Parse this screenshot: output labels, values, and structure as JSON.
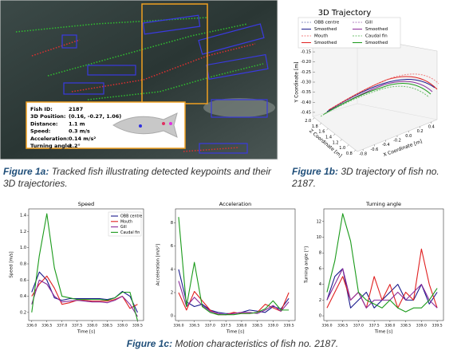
{
  "figure_1a": {
    "info": [
      {
        "label": "Fish ID:",
        "value": "2187"
      },
      {
        "label": "3D Position:",
        "value": "(0.16, -0.27, 1.06)"
      },
      {
        "label": "Distance:",
        "value": "1.1 m"
      },
      {
        "label": "Speed:",
        "value": "0.3 m/s"
      },
      {
        "label": "Acceleration:",
        "value": "0.14 m/s²"
      },
      {
        "label": "Turning angle:",
        "value": "1.2°"
      }
    ],
    "caption_label": "Figure 1a:",
    "caption": "Tracked fish illustrating detected keypoints and their 3D trajectories."
  },
  "figure_1b": {
    "title": "3D Trajectory",
    "legend": [
      {
        "name": "OBB centre",
        "color": "#8a8fc0",
        "dash": true
      },
      {
        "name": "Smoothed",
        "color": "#1a1a8c",
        "dash": false
      },
      {
        "name": "Mouth",
        "color": "#f08080",
        "dash": true
      },
      {
        "name": "Smoothed",
        "color": "#e02020",
        "dash": false
      },
      {
        "name": "Gill",
        "color": "#b080c0",
        "dash": true
      },
      {
        "name": "Smoothed",
        "color": "#8a2a9a",
        "dash": false
      },
      {
        "name": "Caudal fin",
        "color": "#70c070",
        "dash": true
      },
      {
        "name": "Smoothed",
        "color": "#1a9a1a",
        "dash": false
      }
    ],
    "xlabel": "X Coordinate [m]",
    "ylabel": "Y Coordinate [m]",
    "zlabel": "Z Coordinate [m]",
    "xlim": [
      -0.9,
      0.5
    ],
    "xticks": [
      -0.8,
      -0.6,
      -0.4,
      -0.2,
      {
        "value": 0,
        "label": "0.0"
      },
      0.2,
      0.4
    ],
    "ylim": [
      -0.47,
      -0.13
    ],
    "yticks": [
      -0.15,
      {
        "value": -0.2,
        "label": "-0.20"
      },
      -0.25,
      {
        "value": -0.3,
        "label": "-0.30"
      },
      -0.35,
      {
        "value": -0.4,
        "label": "-0.40"
      },
      -0.45
    ],
    "zlim": [
      2.05,
      0.75
    ],
    "zticks": [
      {
        "value": 2,
        "label": "2.0"
      },
      1.8,
      1.6,
      1.4,
      1.2,
      {
        "value": 1,
        "label": "1.0"
      },
      0.8
    ],
    "caption_label": "Figure 1b:",
    "caption": "3D trajectory of fish no. 2187."
  },
  "chart_data": [
    {
      "type": "line",
      "title": "Speed",
      "xlabel": "Time [s]",
      "ylabel": "Speed [m/s]",
      "x": [
        336.0,
        336.25,
        336.5,
        336.75,
        337.0,
        337.25,
        337.5,
        337.75,
        338.0,
        338.25,
        338.5,
        338.75,
        339.0,
        339.25,
        339.5
      ],
      "xlim": [
        335.9,
        339.7
      ],
      "xticks": [
        {
          "value": 336,
          "label": "336.0"
        },
        336.5,
        {
          "value": 337,
          "label": "337.0"
        },
        337.5,
        {
          "value": 338,
          "label": "338.0"
        },
        338.5,
        {
          "value": 339,
          "label": "339.0"
        },
        339.5
      ],
      "ylim": [
        0.1,
        1.48
      ],
      "yticks": [
        0.2,
        0.4,
        0.6,
        0.8,
        {
          "value": 1,
          "label": "1.0"
        },
        1.2,
        1.4
      ],
      "legend": "upper right",
      "series": [
        {
          "name": "OBB centre",
          "color": "#1a1a8c",
          "values": [
            0.45,
            0.7,
            0.6,
            0.38,
            0.35,
            0.37,
            0.37,
            0.37,
            0.37,
            0.37,
            0.36,
            0.38,
            0.46,
            0.4,
            0.2
          ]
        },
        {
          "name": "Mouth",
          "color": "#e02020",
          "values": [
            0.4,
            0.55,
            0.65,
            0.5,
            0.3,
            0.32,
            0.35,
            0.35,
            0.34,
            0.34,
            0.34,
            0.36,
            0.4,
            0.25,
            0.3
          ]
        },
        {
          "name": "Gill",
          "color": "#8a2a9a",
          "values": [
            0.3,
            0.6,
            0.55,
            0.4,
            0.33,
            0.34,
            0.35,
            0.34,
            0.33,
            0.33,
            0.32,
            0.35,
            0.4,
            0.3,
            0.15
          ]
        },
        {
          "name": "Caudal fin",
          "color": "#1a9a1a",
          "values": [
            0.2,
            0.9,
            1.42,
            0.75,
            0.4,
            0.38,
            0.36,
            0.36,
            0.36,
            0.36,
            0.35,
            0.38,
            0.45,
            0.45,
            0.1
          ]
        }
      ]
    },
    {
      "type": "line",
      "title": "Acceleration",
      "xlabel": "Time [s]",
      "ylabel": "Acceleration [m/s²]",
      "x": [
        336.0,
        336.25,
        336.5,
        336.75,
        337.0,
        337.25,
        337.5,
        337.75,
        338.0,
        338.25,
        338.5,
        338.75,
        339.0,
        339.25,
        339.5
      ],
      "xlim": [
        335.9,
        339.7
      ],
      "xticks": [
        {
          "value": 336,
          "label": "336.0"
        },
        336.5,
        {
          "value": 337,
          "label": "337.0"
        },
        337.5,
        {
          "value": 338,
          "label": "338.0"
        },
        338.5,
        {
          "value": 339,
          "label": "339.0"
        },
        339.5
      ],
      "ylim": [
        -0.4,
        9.2
      ],
      "yticks": [
        0,
        2,
        4,
        6,
        8
      ],
      "series": [
        {
          "color": "#1a1a8c",
          "values": [
            4.0,
            1.2,
            0.8,
            1.0,
            0.5,
            0.3,
            0.2,
            0.2,
            0.3,
            0.5,
            0.4,
            0.3,
            0.8,
            0.6,
            1.5
          ]
        },
        {
          "color": "#e02020",
          "values": [
            2.0,
            0.5,
            2.1,
            1.3,
            0.5,
            0.1,
            0.1,
            0.3,
            0.2,
            0.2,
            0.3,
            1.0,
            0.7,
            0.4,
            2.0
          ]
        },
        {
          "color": "#8a2a9a",
          "values": [
            3.0,
            0.8,
            1.6,
            0.9,
            0.4,
            0.2,
            0.1,
            0.2,
            0.3,
            0.3,
            0.2,
            0.5,
            0.9,
            0.4,
            1.2
          ]
        },
        {
          "color": "#1a9a1a",
          "values": [
            8.5,
            0.8,
            4.6,
            0.8,
            0.3,
            0.1,
            0.1,
            0.1,
            0.2,
            0.2,
            0.3,
            0.6,
            1.3,
            0.5,
            0.5
          ]
        }
      ]
    },
    {
      "type": "line",
      "title": "Turning angle",
      "xlabel": "Time [s]",
      "ylabel": "Turning angle [°]",
      "x": [
        336.0,
        336.25,
        336.5,
        336.75,
        337.0,
        337.25,
        337.5,
        337.75,
        338.0,
        338.25,
        338.5,
        338.75,
        339.0,
        339.25,
        339.5
      ],
      "xlim": [
        335.9,
        339.7
      ],
      "xticks": [
        {
          "value": 336,
          "label": "336.0"
        },
        336.5,
        {
          "value": 337,
          "label": "337.0"
        },
        337.5,
        {
          "value": 338,
          "label": "338.0"
        },
        338.5,
        {
          "value": 339,
          "label": "339.0"
        },
        339.5
      ],
      "ylim": [
        -0.6,
        13.6
      ],
      "yticks": [
        0,
        2,
        4,
        6,
        8,
        10,
        12
      ],
      "series": [
        {
          "color": "#1a1a8c",
          "values": [
            2,
            5,
            6,
            1,
            2,
            3,
            1,
            2,
            3,
            4,
            2,
            2,
            4,
            1.5,
            3
          ]
        },
        {
          "color": "#e02020",
          "values": [
            1,
            3,
            5,
            2,
            3,
            1,
            5,
            2,
            4,
            1,
            3,
            2,
            8.5,
            4,
            1
          ]
        },
        {
          "color": "#8a2a9a",
          "values": [
            2,
            4,
            6,
            2,
            3,
            1,
            2,
            2,
            2,
            3,
            2,
            3,
            4,
            2,
            1
          ]
        },
        {
          "color": "#1a9a1a",
          "values": [
            3,
            7,
            13,
            9.5,
            3,
            2,
            1.5,
            1,
            2,
            1,
            0.5,
            1,
            1,
            2,
            3.5
          ]
        }
      ]
    }
  ],
  "figure_1c": {
    "caption_label": "Figure 1c:",
    "caption": "Motion characteristics of fish no. 2187."
  }
}
